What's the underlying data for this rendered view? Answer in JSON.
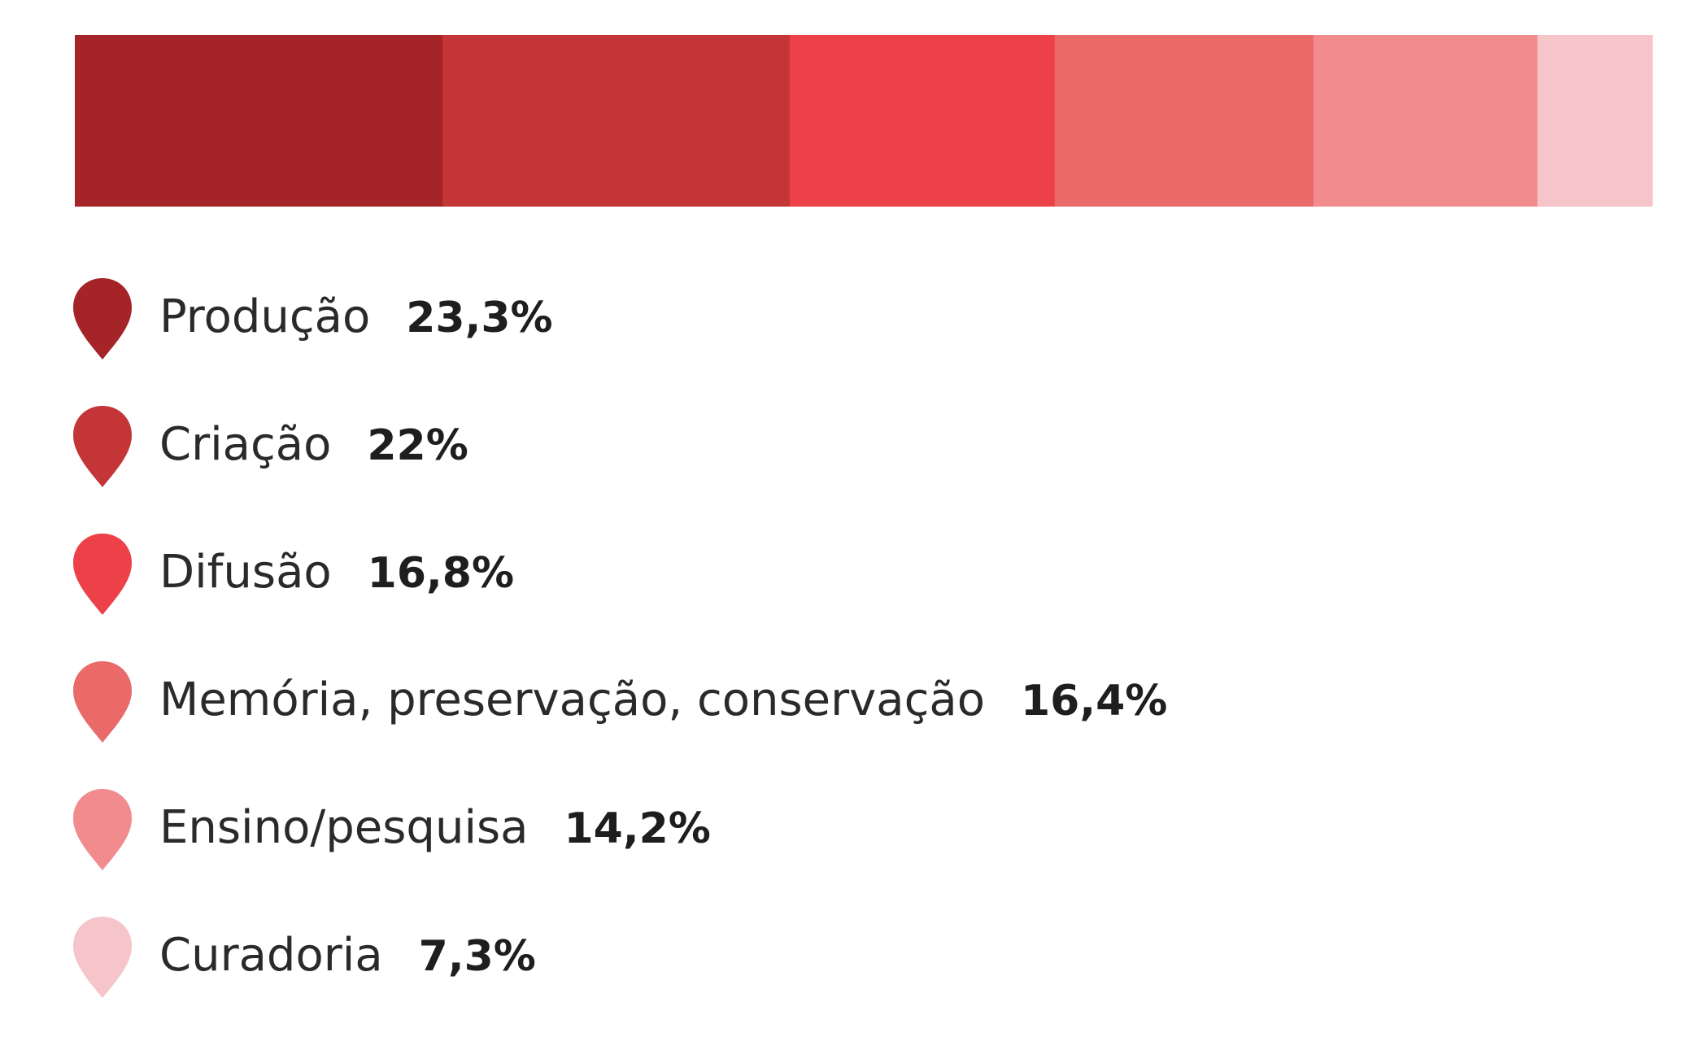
{
  "chart_data": {
    "type": "bar",
    "orientation": "horizontal-stacked-100",
    "categories": [
      "Produção",
      "Criação",
      "Difusão",
      "Memória, preservação, conservação",
      "Ensino/pesquisa",
      "Curadoria"
    ],
    "values": [
      23.3,
      22,
      16.8,
      16.4,
      14.2,
      7.3
    ],
    "value_labels": [
      "23,3%",
      "22%",
      "16,8%",
      "16,4%",
      "14,2%",
      "7,3%"
    ],
    "colors": [
      "#a52427",
      "#c33536",
      "#ec4149",
      "#ea6a6a",
      "#f28b8e",
      "#f5c5c9"
    ],
    "unit": "%",
    "xlim": [
      0,
      100
    ],
    "grid": false,
    "legend_position": "bottom-left",
    "title": "",
    "xlabel": "",
    "ylabel": ""
  }
}
